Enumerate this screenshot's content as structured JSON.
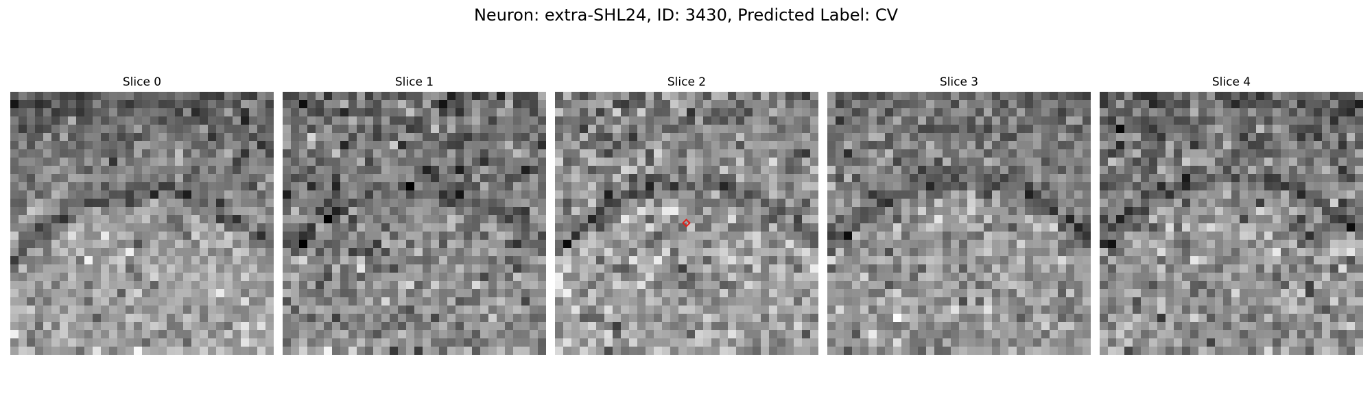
{
  "figure": {
    "title": "Neuron: extra-SHL24, ID: 3430, Predicted Label: CV"
  },
  "slices": [
    {
      "label": "Slice 0"
    },
    {
      "label": "Slice 1"
    },
    {
      "label": "Slice 2",
      "has_marker": true
    },
    {
      "label": "Slice 3"
    },
    {
      "label": "Slice 4"
    }
  ],
  "marker": {
    "color": "#e0201a",
    "shape": "diamond",
    "slice_index": 2
  },
  "colormap": "grayscale"
}
